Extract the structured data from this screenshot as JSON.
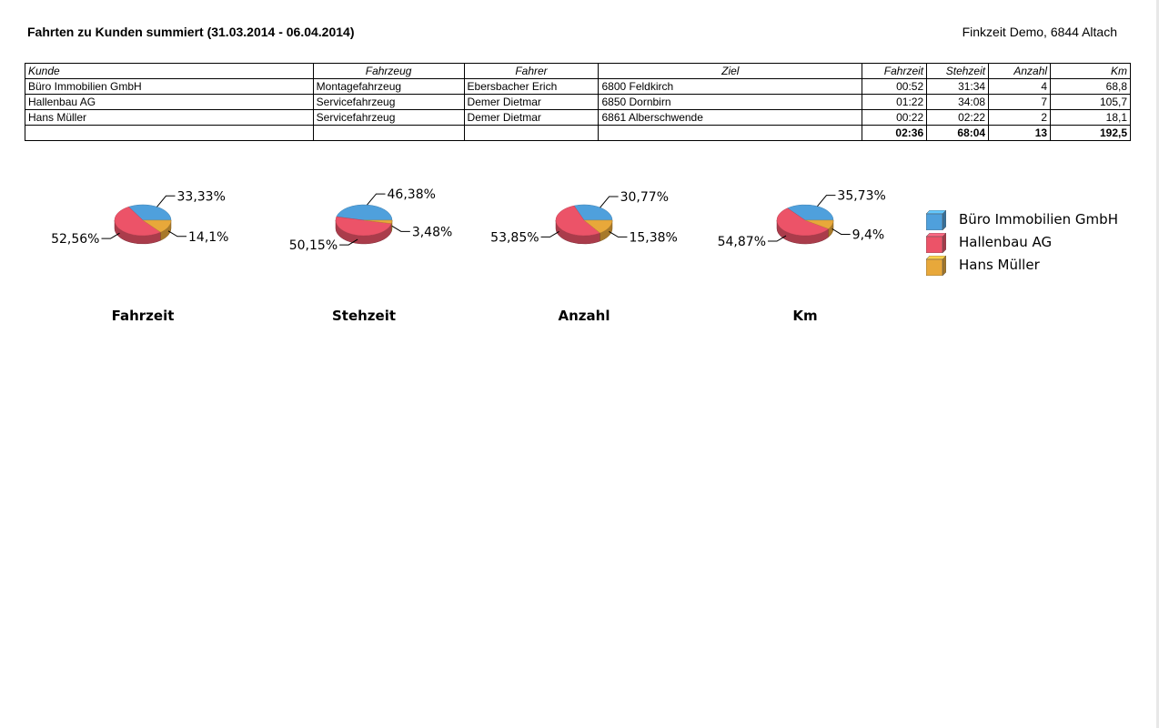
{
  "report": {
    "title": "Fahrten zu Kunden summiert (31.03.2014 - 06.04.2014)",
    "company": "Finkzeit Demo, 6844 Altach"
  },
  "table": {
    "headers": [
      "Kunde",
      "Fahrzeug",
      "Fahrer",
      "Ziel",
      "Fahrzeit",
      "Stehzeit",
      "Anzahl",
      "Km"
    ],
    "rows": [
      [
        "Büro Immobilien GmbH",
        "Montagefahrzeug",
        "Ebersbacher Erich",
        "6800 Feldkirch",
        "00:52",
        "31:34",
        "4",
        "68,8"
      ],
      [
        "Hallenbau AG",
        "Servicefahrzeug",
        "Demer Dietmar",
        "6850 Dornbirn",
        "01:22",
        "34:08",
        "7",
        "105,7"
      ],
      [
        "Hans Müller",
        "Servicefahrzeug",
        "Demer Dietmar",
        "6861 Alberschwende",
        "00:22",
        "02:22",
        "2",
        "18,1"
      ]
    ],
    "totals": [
      "",
      "",
      "",
      "",
      "02:36",
      "68:04",
      "13",
      "192,5"
    ]
  },
  "colors": {
    "Büro Immobilien GmbH": "#4fa0dc",
    "Hallenbau AG": "#ec5368",
    "Hans Müller": "#e8a83a"
  },
  "legend": [
    "Büro Immobilien GmbH",
    "Hallenbau AG",
    "Hans Müller"
  ],
  "chart_data": [
    {
      "type": "pie",
      "title": "Fahrzeit",
      "categories": [
        "Büro Immobilien GmbH",
        "Hallenbau AG",
        "Hans Müller"
      ],
      "values": [
        33.33,
        52.56,
        14.1
      ],
      "labels": [
        "33,33%",
        "52,56%",
        "14,1%"
      ]
    },
    {
      "type": "pie",
      "title": "Stehzeit",
      "categories": [
        "Büro Immobilien GmbH",
        "Hallenbau AG",
        "Hans Müller"
      ],
      "values": [
        46.38,
        50.15,
        3.48
      ],
      "labels": [
        "46,38%",
        "50,15%",
        "3,48%"
      ]
    },
    {
      "type": "pie",
      "title": "Anzahl",
      "categories": [
        "Büro Immobilien GmbH",
        "Hallenbau AG",
        "Hans Müller"
      ],
      "values": [
        30.77,
        53.85,
        15.38
      ],
      "labels": [
        "30,77%",
        "53,85%",
        "15,38%"
      ]
    },
    {
      "type": "pie",
      "title": "Km",
      "categories": [
        "Büro Immobilien GmbH",
        "Hallenbau AG",
        "Hans Müller"
      ],
      "values": [
        35.73,
        54.87,
        9.4
      ],
      "labels": [
        "35,73%",
        "54,87%",
        "9,4%"
      ]
    }
  ]
}
